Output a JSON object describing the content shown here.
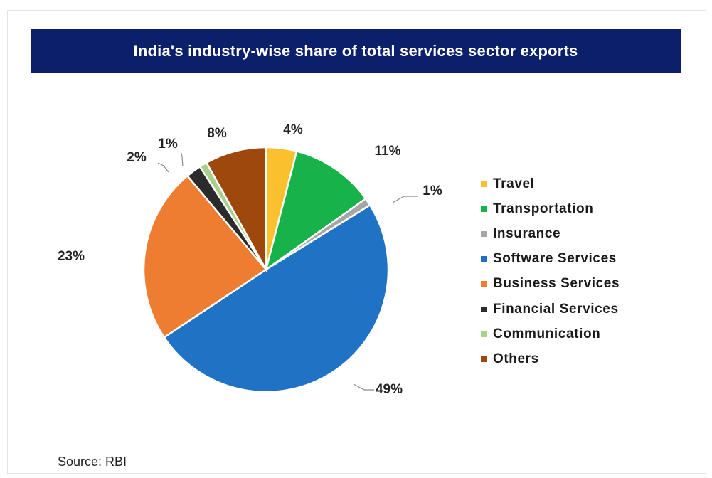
{
  "title": "India's industry-wise share of total services sector exports",
  "source": "Source: RBI",
  "chart_data": {
    "type": "pie",
    "title": "India's industry-wise share of total services sector exports",
    "legend_position": "right",
    "slices": [
      {
        "name": "Travel",
        "value": 4,
        "label": "4%",
        "color": "#fbc02d"
      },
      {
        "name": "Transportation",
        "value": 11,
        "label": "11%",
        "color": "#18b24b"
      },
      {
        "name": "Insurance",
        "value": 1,
        "label": "1%",
        "color": "#a6a6a6"
      },
      {
        "name": "Software Services",
        "value": 49,
        "label": "49%",
        "color": "#1f72c4"
      },
      {
        "name": "Business Services",
        "value": 23,
        "label": "23%",
        "color": "#ef7d31"
      },
      {
        "name": "Financial Services",
        "value": 2,
        "label": "2%",
        "color": "#2b2b2b"
      },
      {
        "name": "Communication",
        "value": 1,
        "label": "1%",
        "color": "#a9d08e"
      },
      {
        "name": "Others",
        "value": 8,
        "label": "8%",
        "color": "#9e480e"
      }
    ]
  }
}
